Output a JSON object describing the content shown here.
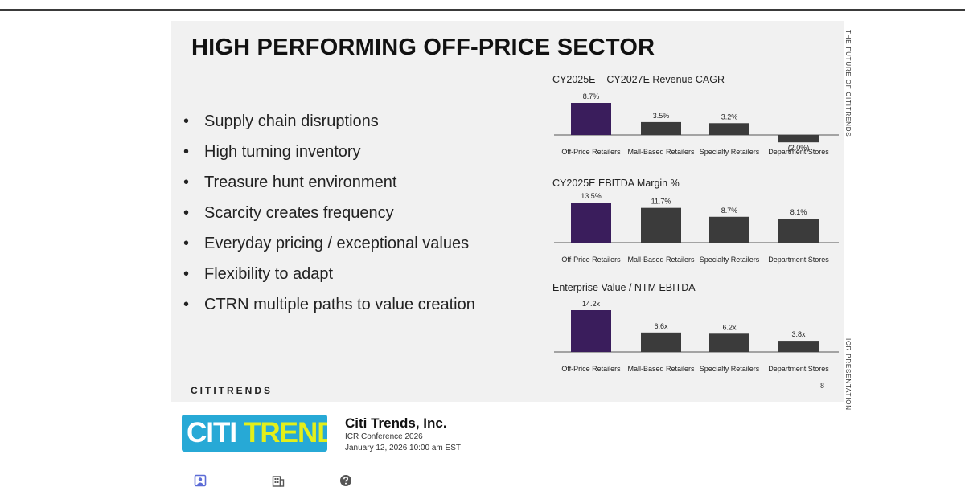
{
  "slide": {
    "title": "HIGH PERFORMING OFF-PRICE SECTOR",
    "side_top": "THE FUTURE OF CITITRENDS",
    "side_bottom": "ICR PRESENTATION",
    "brand": "CITITRENDS",
    "page_number": "8",
    "bullet_glyph": "•",
    "bullets": [
      "Supply chain disruptions",
      "High turning inventory",
      "Treasure hunt environment",
      "Scarcity creates frequency",
      "Everyday pricing / exceptional values",
      "Flexibility to adapt",
      "CTRN multiple paths to value creation"
    ]
  },
  "chart_data": [
    {
      "type": "bar",
      "title": "CY2025E – CY2027E Revenue CAGR",
      "categories": [
        "Off-Price Retailers",
        "Mall-Based Retailers",
        "Specialty Retailers",
        "Department Stores"
      ],
      "values": [
        8.7,
        3.5,
        3.2,
        -2.0
      ],
      "labels": [
        "8.7%",
        "3.5%",
        "3.2%",
        "(2.0%)"
      ],
      "ylim": [
        -2.0,
        8.7
      ]
    },
    {
      "type": "bar",
      "title": "CY2025E EBITDA Margin %",
      "categories": [
        "Off-Price Retailers",
        "Mall-Based Retailers",
        "Specialty Retailers",
        "Department Stores"
      ],
      "values": [
        13.5,
        11.7,
        8.7,
        8.1
      ],
      "labels": [
        "13.5%",
        "11.7%",
        "8.7%",
        "8.1%"
      ],
      "ylim": [
        0,
        13.5
      ]
    },
    {
      "type": "bar",
      "title": "Enterprise Value / NTM EBITDA",
      "categories": [
        "Off-Price Retailers",
        "Mall-Based Retailers",
        "Specialty Retailers",
        "Department Stores"
      ],
      "values": [
        14.2,
        6.6,
        6.2,
        3.8
      ],
      "labels": [
        "14.2x",
        "6.6x",
        "6.2x",
        "3.8x"
      ],
      "ylim": [
        0,
        14.2
      ]
    }
  ],
  "colors": {
    "highlight_bar": "#3a1d5c",
    "other_bar": "#3b3b3b",
    "logo_bg": "#27a9d6",
    "logo_trends": "#e3ef1a",
    "icon_active": "#5b6bd6",
    "icon_muted": "#555555"
  },
  "footer": {
    "logo_citi": "CITI",
    "logo_trends": "TRENDS",
    "company": "Citi Trends, Inc.",
    "event": "ICR Conference 2026",
    "date": "January 12, 2026 10:00 am EST"
  },
  "tabs": [
    {
      "icon": "presenter-icon"
    },
    {
      "icon": "company-icon"
    },
    {
      "icon": "help-icon"
    }
  ]
}
